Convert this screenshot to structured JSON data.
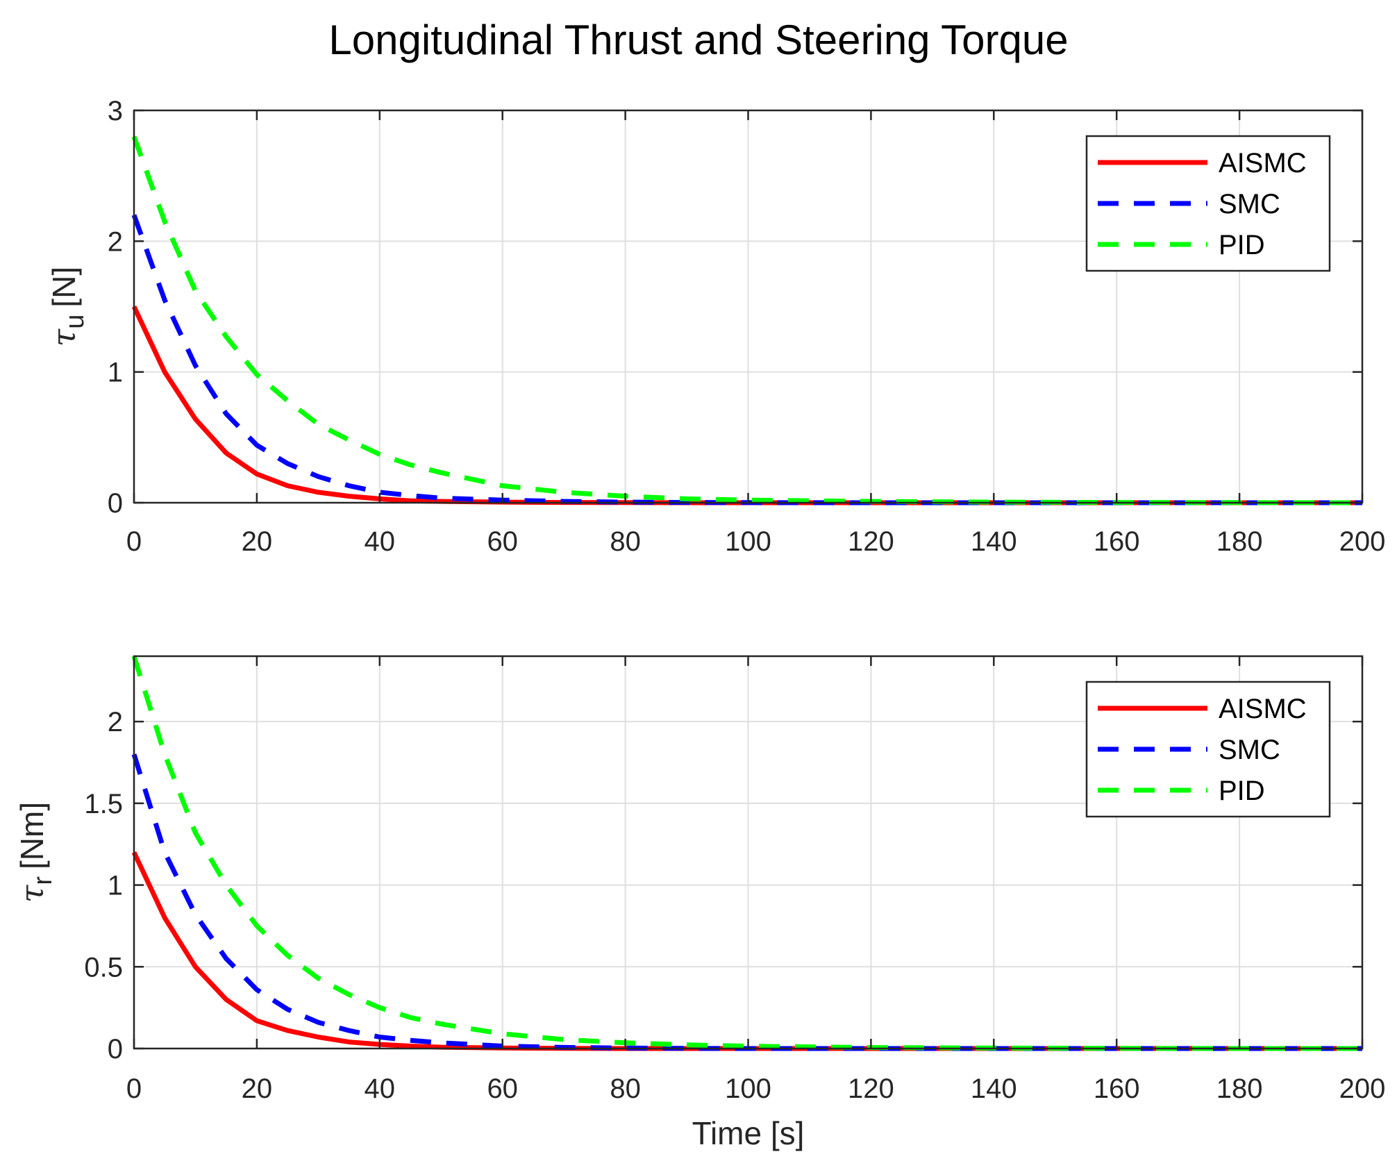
{
  "figure_title": "Longitudinal Thrust and Steering Torque",
  "chart_data": [
    {
      "type": "line",
      "title": "",
      "xlabel": "",
      "ylabel_symbol": "τ",
      "ylabel_subscript": "u",
      "ylabel_unit": "[N]",
      "xlim": [
        0,
        200
      ],
      "ylim": [
        0,
        3
      ],
      "xticks": [
        0,
        20,
        40,
        60,
        80,
        100,
        120,
        140,
        160,
        180,
        200
      ],
      "yticks": [
        0,
        1,
        2,
        3
      ],
      "ytick_labels": [
        "0",
        "1",
        "2",
        "3"
      ],
      "grid": true,
      "legend_location": "top-right",
      "x": [
        0,
        5,
        10,
        15,
        20,
        25,
        30,
        35,
        40,
        45,
        50,
        60,
        70,
        80,
        90,
        100,
        120,
        140,
        160,
        180,
        200
      ],
      "series": [
        {
          "name": "AISMC",
          "color": "#ff0000",
          "style": "solid",
          "values": [
            1.5,
            1.0,
            0.64,
            0.38,
            0.22,
            0.13,
            0.08,
            0.05,
            0.03,
            0.015,
            0.01,
            0.005,
            0.002,
            0.001,
            0,
            0,
            0,
            0,
            0,
            0,
            0
          ]
        },
        {
          "name": "SMC",
          "color": "#0000ff",
          "style": "dashed",
          "values": [
            2.2,
            1.55,
            1.05,
            0.68,
            0.44,
            0.3,
            0.2,
            0.13,
            0.08,
            0.055,
            0.035,
            0.02,
            0.01,
            0.005,
            0.002,
            0.001,
            0,
            0,
            0,
            0,
            0
          ]
        },
        {
          "name": "PID",
          "color": "#00ff00",
          "style": "dashed",
          "values": [
            2.8,
            2.15,
            1.62,
            1.27,
            0.98,
            0.78,
            0.6,
            0.48,
            0.37,
            0.29,
            0.23,
            0.13,
            0.08,
            0.05,
            0.03,
            0.02,
            0.01,
            0.005,
            0.002,
            0.001,
            0
          ]
        }
      ]
    },
    {
      "type": "line",
      "title": "",
      "xlabel": "Time [s]",
      "ylabel_symbol": "τ",
      "ylabel_subscript": "r",
      "ylabel_unit": "[Nm]",
      "xlim": [
        0,
        200
      ],
      "ylim": [
        0,
        2.4
      ],
      "xticks": [
        0,
        20,
        40,
        60,
        80,
        100,
        120,
        140,
        160,
        180,
        200
      ],
      "yticks": [
        0,
        0.5,
        1,
        1.5,
        2
      ],
      "ytick_labels": [
        "0",
        "0.5",
        "1",
        "1.5",
        "2"
      ],
      "grid": true,
      "legend_location": "top-right",
      "x": [
        0,
        5,
        10,
        15,
        20,
        25,
        30,
        35,
        40,
        45,
        50,
        60,
        70,
        80,
        90,
        100,
        120,
        140,
        160,
        180,
        200
      ],
      "series": [
        {
          "name": "AISMC",
          "color": "#ff0000",
          "style": "solid",
          "values": [
            1.2,
            0.8,
            0.5,
            0.3,
            0.17,
            0.11,
            0.07,
            0.04,
            0.025,
            0.015,
            0.008,
            0.003,
            0.001,
            0,
            0,
            0,
            0,
            0,
            0,
            0,
            0
          ]
        },
        {
          "name": "SMC",
          "color": "#0000ff",
          "style": "dashed",
          "values": [
            1.8,
            1.2,
            0.82,
            0.55,
            0.36,
            0.24,
            0.16,
            0.11,
            0.07,
            0.05,
            0.035,
            0.015,
            0.007,
            0.003,
            0.001,
            0,
            0,
            0,
            0,
            0,
            0
          ]
        },
        {
          "name": "PID",
          "color": "#00ff00",
          "style": "dashed",
          "values": [
            2.4,
            1.8,
            1.32,
            1.0,
            0.75,
            0.57,
            0.43,
            0.33,
            0.25,
            0.19,
            0.15,
            0.09,
            0.055,
            0.035,
            0.022,
            0.014,
            0.006,
            0.003,
            0.001,
            0,
            0
          ]
        }
      ]
    }
  ]
}
